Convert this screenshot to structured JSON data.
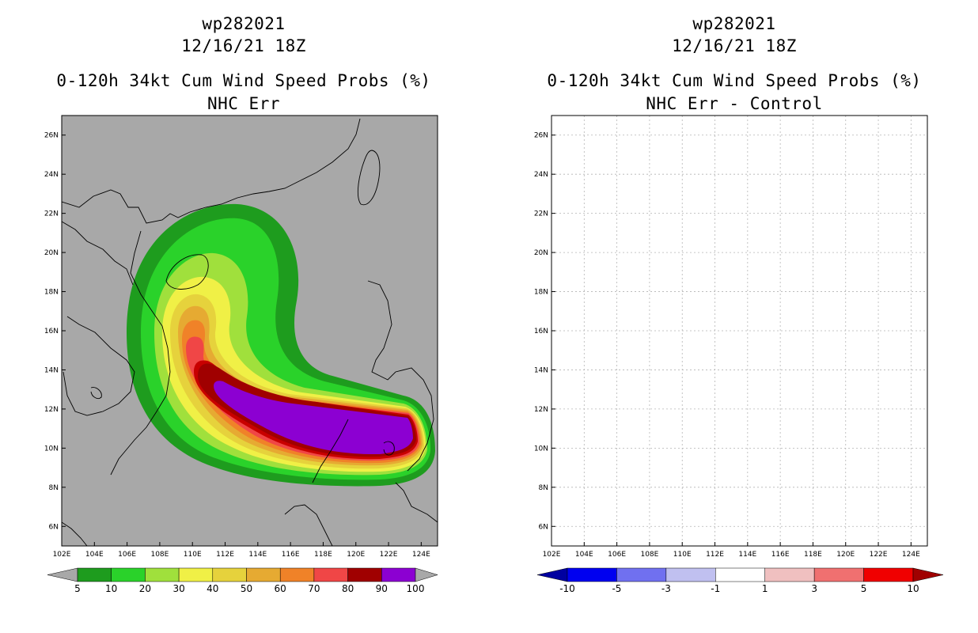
{
  "chart_data": [
    {
      "type": "heatmap",
      "storm_id": "wp282021",
      "datetime": "12/16/21 18Z",
      "title": "0-120h 34kt Cum Wind Speed Probs (%)",
      "subtitle": "NHC Err",
      "x_ticks": [
        "102E",
        "104E",
        "106E",
        "108E",
        "110E",
        "112E",
        "114E",
        "116E",
        "118E",
        "120E",
        "122E",
        "124E"
      ],
      "y_ticks": [
        "26N",
        "24N",
        "22N",
        "20N",
        "18N",
        "16N",
        "14N",
        "12N",
        "10N",
        "8N",
        "6N"
      ],
      "xlim": [
        102,
        125
      ],
      "ylim": [
        5,
        27
      ],
      "background": "#a8a8a8",
      "colorbar": {
        "labels": [
          "5",
          "10",
          "20",
          "30",
          "40",
          "50",
          "60",
          "70",
          "80",
          "90",
          "100"
        ],
        "colors": [
          "#1e9c1e",
          "#2ad22a",
          "#a0e03c",
          "#f0f046",
          "#e6d23c",
          "#e6aa32",
          "#f08228",
          "#f04646",
          "#a00000",
          "#8c00d2"
        ]
      }
    },
    {
      "type": "heatmap",
      "storm_id": "wp282021",
      "datetime": "12/16/21 18Z",
      "title": "0-120h 34kt Cum Wind Speed Probs (%)",
      "subtitle": "NHC Err - Control",
      "x_ticks": [
        "102E",
        "104E",
        "106E",
        "108E",
        "110E",
        "112E",
        "114E",
        "116E",
        "118E",
        "120E",
        "122E",
        "124E"
      ],
      "y_ticks": [
        "26N",
        "24N",
        "22N",
        "20N",
        "18N",
        "16N",
        "14N",
        "12N",
        "10N",
        "8N",
        "6N"
      ],
      "xlim": [
        102,
        125
      ],
      "ylim": [
        5,
        27
      ],
      "background": "#ffffff",
      "colorbar": {
        "labels": [
          "-10",
          "-5",
          "-3",
          "-1",
          "1",
          "3",
          "5",
          "10"
        ],
        "colors": [
          "#0000a0",
          "#0000f0",
          "#7070f0",
          "#c0c0f0",
          "#ffffff",
          "#f0c0c0",
          "#f07070",
          "#f00000",
          "#a00000"
        ]
      }
    }
  ]
}
